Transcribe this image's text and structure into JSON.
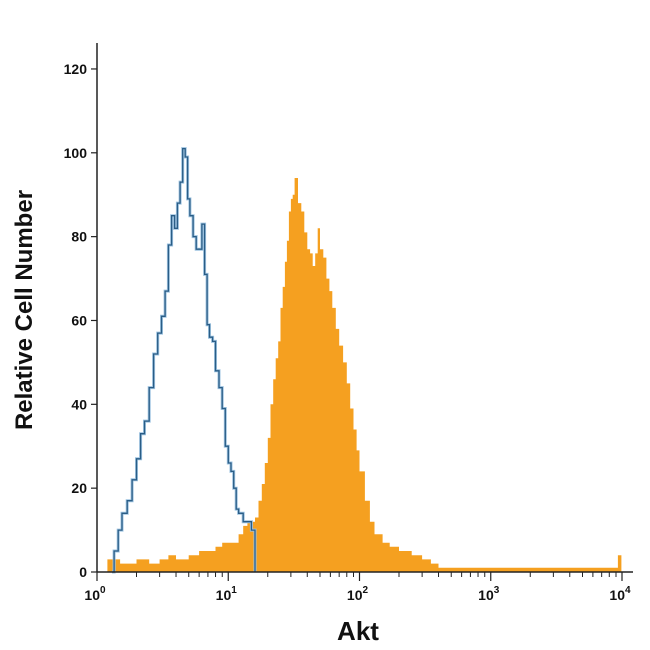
{
  "chart_data": {
    "type": "histogram",
    "xlabel": "Akt",
    "ylabel": "Relative Cell Number",
    "x_scale": "log10",
    "xlim": [
      1,
      10000
    ],
    "ylim": [
      0,
      125
    ],
    "y_ticks": [
      0,
      20,
      40,
      60,
      80,
      100,
      120
    ],
    "x_ticks": [
      {
        "value": 1,
        "base": "10",
        "exp": "0"
      },
      {
        "value": 10,
        "base": "10",
        "exp": "1"
      },
      {
        "value": 100,
        "base": "10",
        "exp": "2"
      },
      {
        "value": 1000,
        "base": "10",
        "exp": "3"
      },
      {
        "value": 10000,
        "base": "10",
        "exp": "4"
      }
    ],
    "grid": false,
    "legend": "none",
    "series": [
      {
        "style": "outline",
        "color": "#2a5d86",
        "points": [
          [
            1.3,
            0
          ],
          [
            1.35,
            5
          ],
          [
            1.45,
            10
          ],
          [
            1.55,
            14
          ],
          [
            1.7,
            17
          ],
          [
            1.85,
            22
          ],
          [
            2.0,
            27
          ],
          [
            2.15,
            33
          ],
          [
            2.3,
            36
          ],
          [
            2.5,
            44
          ],
          [
            2.7,
            52
          ],
          [
            2.9,
            57
          ],
          [
            3.1,
            61
          ],
          [
            3.3,
            67
          ],
          [
            3.5,
            78
          ],
          [
            3.7,
            85
          ],
          [
            3.9,
            82
          ],
          [
            4.1,
            88
          ],
          [
            4.3,
            93
          ],
          [
            4.5,
            101
          ],
          [
            4.7,
            99
          ],
          [
            4.9,
            89
          ],
          [
            5.1,
            85
          ],
          [
            5.4,
            80
          ],
          [
            5.7,
            77
          ],
          [
            6.0,
            77
          ],
          [
            6.3,
            83
          ],
          [
            6.6,
            71
          ],
          [
            6.9,
            59
          ],
          [
            7.2,
            56
          ],
          [
            7.6,
            55
          ],
          [
            8.0,
            48
          ],
          [
            8.5,
            44
          ],
          [
            9.0,
            39
          ],
          [
            9.5,
            30
          ],
          [
            10.0,
            26
          ],
          [
            10.5,
            24
          ],
          [
            11.0,
            20
          ],
          [
            11.5,
            15
          ],
          [
            12.0,
            14
          ],
          [
            13.0,
            12
          ],
          [
            14.0,
            12
          ],
          [
            15.0,
            10
          ],
          [
            16.0,
            0
          ]
        ]
      },
      {
        "style": "filled",
        "color": "#f5a020",
        "points": [
          [
            1.1,
            0
          ],
          [
            1.2,
            3
          ],
          [
            1.5,
            2
          ],
          [
            2.0,
            3
          ],
          [
            2.5,
            2
          ],
          [
            3.0,
            3
          ],
          [
            3.5,
            4
          ],
          [
            4.0,
            3
          ],
          [
            5.0,
            4
          ],
          [
            6.0,
            5
          ],
          [
            7.0,
            5
          ],
          [
            8.0,
            6
          ],
          [
            9.0,
            7
          ],
          [
            10.0,
            7
          ],
          [
            11.0,
            7
          ],
          [
            12.0,
            9
          ],
          [
            13.0,
            11
          ],
          [
            14.0,
            12
          ],
          [
            15.0,
            12
          ],
          [
            16.0,
            13
          ],
          [
            17.0,
            17
          ],
          [
            18.0,
            21
          ],
          [
            19.0,
            26
          ],
          [
            20.0,
            32
          ],
          [
            21.0,
            40
          ],
          [
            22.0,
            46
          ],
          [
            23.0,
            51
          ],
          [
            24.0,
            55
          ],
          [
            25.0,
            63
          ],
          [
            26.0,
            68
          ],
          [
            27.0,
            74
          ],
          [
            28.0,
            79
          ],
          [
            29.0,
            86
          ],
          [
            30.0,
            89
          ],
          [
            31.0,
            90
          ],
          [
            32.0,
            94
          ],
          [
            34.0,
            88
          ],
          [
            36.0,
            86
          ],
          [
            38.0,
            81
          ],
          [
            40.0,
            77
          ],
          [
            42.0,
            76
          ],
          [
            44.0,
            73
          ],
          [
            46.0,
            76
          ],
          [
            48.0,
            82
          ],
          [
            50.0,
            77
          ],
          [
            53.0,
            75
          ],
          [
            56.0,
            70
          ],
          [
            59.0,
            67
          ],
          [
            62.0,
            63
          ],
          [
            66.0,
            58
          ],
          [
            70.0,
            54
          ],
          [
            75.0,
            50
          ],
          [
            80.0,
            45
          ],
          [
            85.0,
            39
          ],
          [
            90.0,
            34
          ],
          [
            95.0,
            29
          ],
          [
            100.0,
            24
          ],
          [
            110.0,
            17
          ],
          [
            120.0,
            12
          ],
          [
            130.0,
            9
          ],
          [
            150.0,
            7
          ],
          [
            170.0,
            6
          ],
          [
            200.0,
            5
          ],
          [
            250.0,
            4
          ],
          [
            300.0,
            3
          ],
          [
            350.0,
            2
          ],
          [
            400.0,
            1
          ],
          [
            500.0,
            1
          ],
          [
            700.0,
            1
          ],
          [
            1000.0,
            1
          ],
          [
            3000.0,
            1
          ],
          [
            7000.0,
            1
          ],
          [
            9300.0,
            4
          ],
          [
            9900.0,
            0
          ]
        ]
      }
    ]
  }
}
